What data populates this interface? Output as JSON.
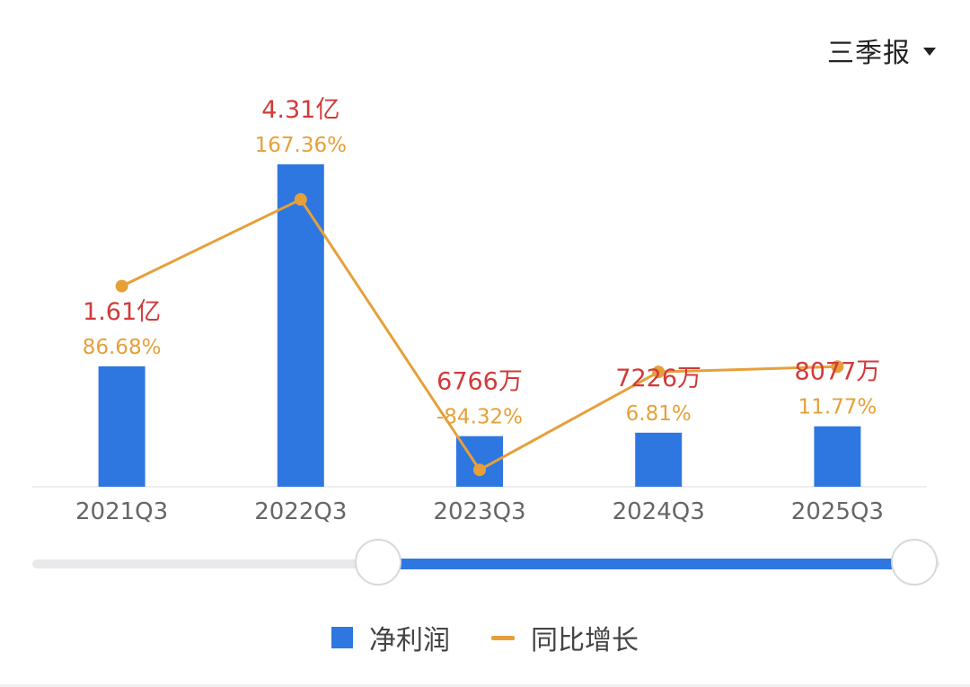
{
  "period_selector": {
    "label": "三季报",
    "icon": "caret-down-icon"
  },
  "colors": {
    "bar": "#2f77e0",
    "line": "#e6a03a",
    "value_label": "#d23a3a",
    "growth_label": "#e6a03a",
    "axis_text": "#666666",
    "axis_line": "#eeeeee"
  },
  "chart_data": {
    "type": "bar",
    "categories": [
      "2021Q3",
      "2022Q3",
      "2023Q3",
      "2024Q3",
      "2025Q3"
    ],
    "series": [
      {
        "name": "净利润",
        "type": "bar",
        "values": [
          16100,
          43100,
          6766,
          7226,
          8077
        ],
        "unit": "万元",
        "labels": [
          "1.61亿",
          "4.31亿",
          "6766万",
          "7226万",
          "8077万"
        ]
      },
      {
        "name": "同比增长",
        "type": "line",
        "values": [
          86.68,
          167.36,
          -84.32,
          6.81,
          11.77
        ],
        "unit": "%",
        "labels": [
          "86.68%",
          "167.36%",
          "-84.32%",
          "6.81%",
          "11.77%"
        ]
      }
    ],
    "title": "",
    "xlabel": "",
    "ylabel": "",
    "ylim": [
      0,
      43100
    ],
    "y2lim": [
      -100,
      200
    ],
    "grid": false,
    "legend": "bottom-center"
  },
  "range_slider": {
    "start_category": "2021Q3",
    "selected_from_fraction": 0.38,
    "selected_to_fraction": 1.0
  },
  "legend": [
    {
      "label": "净利润",
      "shape": "square"
    },
    {
      "label": "同比增长",
      "shape": "line"
    }
  ]
}
